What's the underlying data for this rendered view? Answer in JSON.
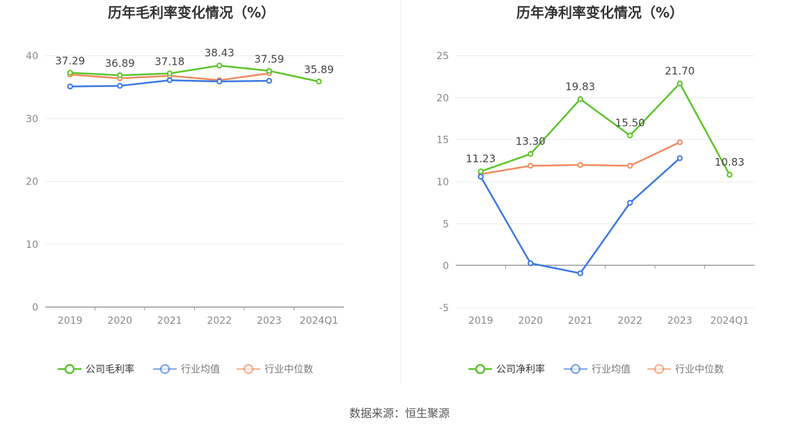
{
  "source_text": "数据来源：恒生聚源",
  "chart_data": [
    {
      "type": "line",
      "title": "历年毛利率变化情况（%）",
      "categories": [
        "2019",
        "2020",
        "2021",
        "2022",
        "2023",
        "2024Q1"
      ],
      "ylim": [
        0,
        40
      ],
      "yticks": [
        0,
        10,
        20,
        30,
        40
      ],
      "ytick_labels": [
        "0",
        "10",
        "20",
        "30",
        "40"
      ],
      "grid": true,
      "legend_position": "bottom",
      "series": [
        {
          "name": "公司毛利率",
          "color": "#5cc42b",
          "values": [
            37.29,
            36.89,
            37.18,
            38.43,
            37.59,
            35.89
          ],
          "labels": [
            "37.29",
            "36.89",
            "37.18",
            "38.43",
            "37.59",
            "35.89"
          ]
        },
        {
          "name": "行业均值",
          "color": "#3a78e0",
          "values": [
            35.1,
            35.2,
            36.1,
            35.9,
            36.0,
            null
          ]
        },
        {
          "name": "行业中位数",
          "color": "#f08a5d",
          "values": [
            37.0,
            36.4,
            36.8,
            36.1,
            37.2,
            null
          ]
        }
      ]
    },
    {
      "type": "line",
      "title": "历年净利率变化情况（%）",
      "categories": [
        "2019",
        "2020",
        "2021",
        "2022",
        "2023",
        "2024Q1"
      ],
      "ylim": [
        -5,
        25
      ],
      "yticks": [
        -5,
        0,
        5,
        10,
        15,
        20,
        25
      ],
      "ytick_labels": [
        "-5",
        "0",
        "5",
        "10",
        "15",
        "20",
        "25"
      ],
      "grid": true,
      "legend_position": "bottom",
      "series": [
        {
          "name": "公司净利率",
          "color": "#5cc42b",
          "values": [
            11.23,
            13.3,
            19.83,
            15.5,
            21.7,
            10.83
          ],
          "labels": [
            "11.23",
            "13.30",
            "19.83",
            "15.50",
            "21.70",
            "10.83"
          ]
        },
        {
          "name": "行业均值",
          "color": "#3a78e0",
          "values": [
            10.6,
            0.3,
            -0.9,
            7.5,
            12.8,
            null
          ]
        },
        {
          "name": "行业中位数",
          "color": "#f08a5d",
          "values": [
            10.9,
            11.9,
            12.0,
            11.9,
            14.7,
            null
          ]
        }
      ]
    }
  ]
}
